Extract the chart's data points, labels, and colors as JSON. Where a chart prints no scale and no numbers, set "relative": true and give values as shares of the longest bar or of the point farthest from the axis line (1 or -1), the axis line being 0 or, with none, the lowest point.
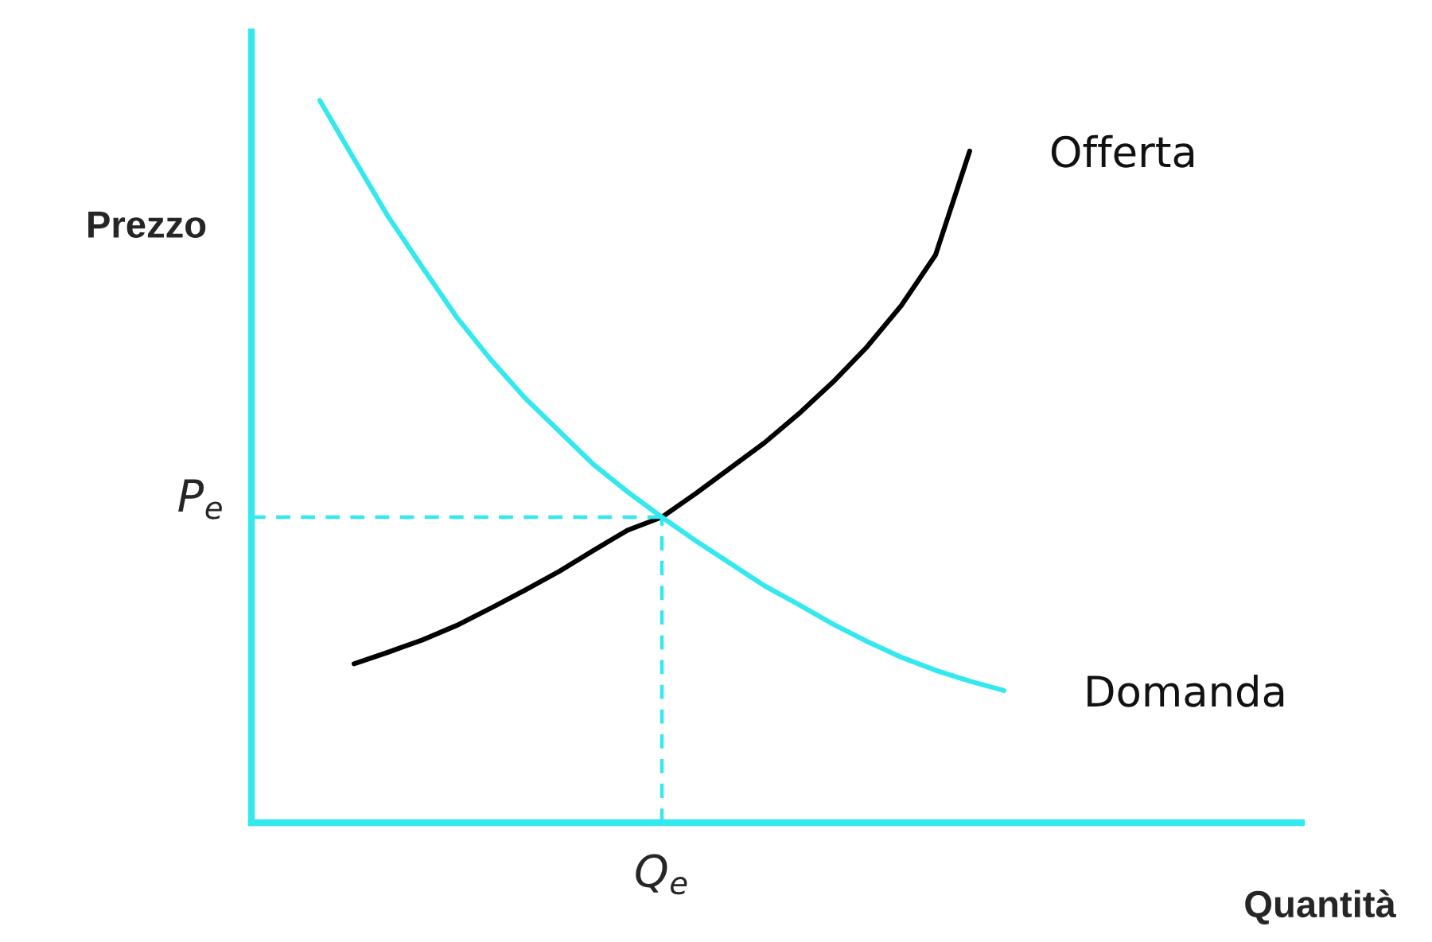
{
  "chart_data": {
    "type": "line",
    "relative": true,
    "xlabel": "Quantità",
    "ylabel": "Prezzo",
    "categories": [
      null,
      null,
      null,
      null,
      null,
      null,
      null,
      null,
      null,
      null,
      null,
      null,
      null,
      null,
      null,
      null,
      null,
      null,
      null,
      null,
      null,
      null,
      null,
      null,
      null,
      null,
      null,
      null,
      null,
      null
    ],
    "marker": "none",
    "line_style": "solid",
    "series": [
      {
        "name": "Offerta",
        "color": "#000000",
        "values": [
          null,
          null,
          0.22,
          0.236,
          0.253,
          0.273,
          0.297,
          0.322,
          0.348,
          0.377,
          0.405,
          0.423,
          0.456,
          0.491,
          0.526,
          0.566,
          0.61,
          0.659,
          0.716,
          0.786,
          0.93,
          null,
          null,
          null,
          null,
          null,
          null,
          null,
          null,
          null
        ]
      },
      {
        "name": "Domanda",
        "color": "#33e8ee",
        "values": [
          null,
          1,
          0.919,
          0.839,
          0.769,
          0.7,
          0.641,
          0.588,
          0.542,
          0.496,
          0.458,
          0.423,
          0.39,
          0.359,
          0.328,
          0.302,
          0.275,
          0.251,
          0.229,
          0.211,
          0.196,
          0.183,
          null,
          null,
          null,
          null,
          null,
          null,
          null,
          null
        ]
      }
    ],
    "ref_lines": [
      {
        "axis": "y",
        "value": 0.423,
        "label": "P$_{e}$",
        "color": "#33e8ee",
        "line_style": "dashed"
      }
    ],
    "annotations": [
      "Q$_{e}$"
    ]
  }
}
